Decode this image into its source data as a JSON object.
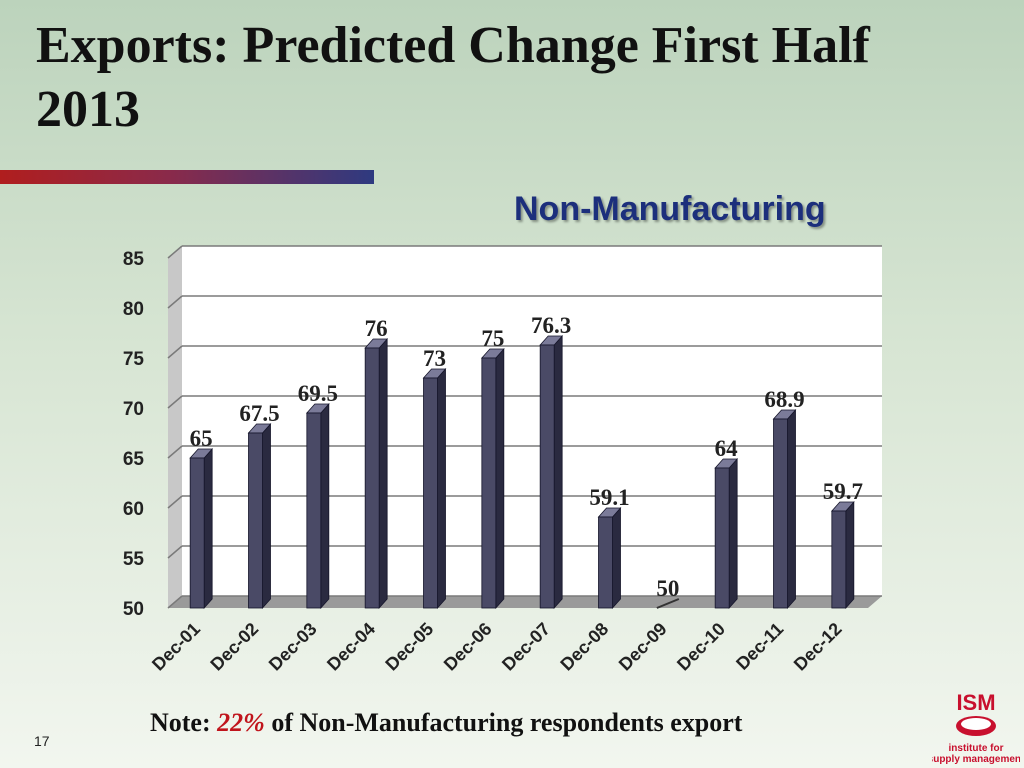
{
  "slide": {
    "title": "Exports: Predicted Change First Half 2013",
    "page_number": "17",
    "note": {
      "prefix": "Note:",
      "percent": "22%",
      "suffix": "of Non-Manufacturing respondents export"
    },
    "logo": {
      "brand": "ISM",
      "line1": "institute for",
      "line2": "supply management"
    }
  },
  "chart_data": {
    "type": "bar",
    "title": "Non-Manufacturing",
    "categories": [
      "Dec-01",
      "Dec-02",
      "Dec-03",
      "Dec-04",
      "Dec-05",
      "Dec-06",
      "Dec-07",
      "Dec-08",
      "Dec-09",
      "Dec-10",
      "Dec-11",
      "Dec-12"
    ],
    "values": [
      65,
      67.5,
      69.5,
      76,
      73,
      75,
      76.3,
      59.1,
      50,
      64,
      68.9,
      59.7
    ],
    "value_labels": [
      "65",
      "67.5",
      "69.5",
      "76",
      "73",
      "75",
      "76.3",
      "59.1",
      "50",
      "64",
      "68.9",
      "59.7"
    ],
    "ylim": [
      50,
      85
    ],
    "yticks": [
      50,
      55,
      60,
      65,
      70,
      75,
      80,
      85
    ],
    "xlabel": "",
    "ylabel": "",
    "grid": true,
    "three_d": true,
    "colors": {
      "bar_front": "#4a4a66",
      "bar_side": "#2a2a40",
      "bar_top": "#7b7b99",
      "wall": "#ffffff",
      "wall_side": "#c8c8c8",
      "floor": "#9a9a9a",
      "grid": "#7a7a7a"
    }
  }
}
